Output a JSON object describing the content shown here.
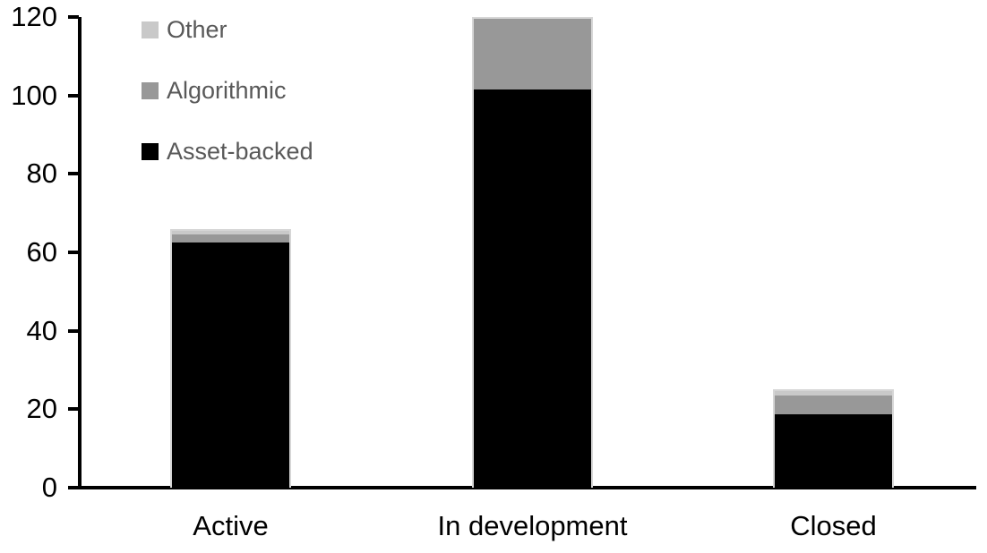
{
  "chart_data": {
    "type": "bar",
    "stacked": true,
    "title": "",
    "xlabel": "",
    "ylabel": "",
    "categories": [
      "Active",
      "In development",
      "Closed"
    ],
    "series": [
      {
        "name": "Asset-backed",
        "color": "#000000",
        "values": [
          63,
          102,
          19
        ]
      },
      {
        "name": "Algorithmic",
        "color": "#989898",
        "values": [
          2,
          18,
          5
        ]
      },
      {
        "name": "Other",
        "color": "#c9c9c9",
        "values": [
          1,
          0,
          1
        ]
      }
    ],
    "totals": [
      66,
      120,
      25
    ],
    "ylim": [
      0,
      120
    ],
    "yticks": [
      0,
      20,
      40,
      60,
      80,
      100,
      120
    ],
    "grid": false,
    "axis_color": "#000000",
    "legend": {
      "position": "top-left",
      "text_color": "#595959",
      "items": [
        {
          "label": "Other",
          "color": "#c9c9c9"
        },
        {
          "label": "Algorithmic",
          "color": "#989898"
        },
        {
          "label": "Asset-backed",
          "color": "#000000"
        }
      ]
    }
  }
}
